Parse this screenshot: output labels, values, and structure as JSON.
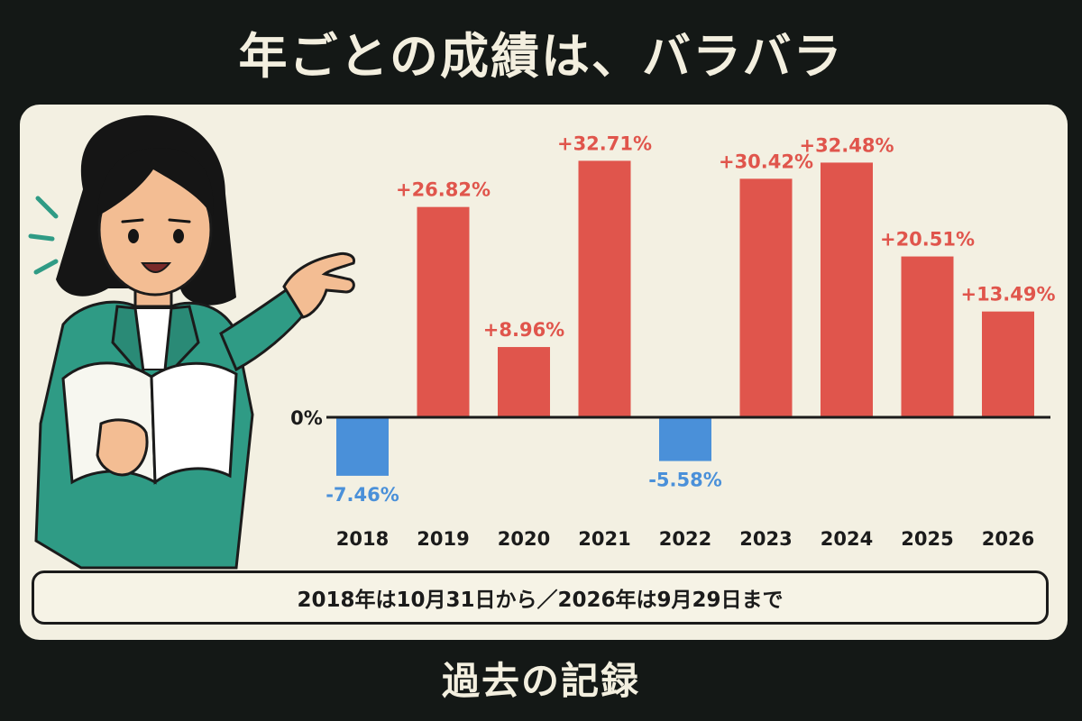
{
  "title": "年ごとの成績は、バラバラ",
  "footer_title": "過去の記録",
  "note": "2018年は10月31日から／2026年は9月29日まで",
  "colors": {
    "positive": "#e0554c",
    "negative": "#4a90d9",
    "background": "#141816",
    "panel": "#f3f0e2",
    "jacket": "#2f9b85"
  },
  "chart_data": {
    "type": "bar",
    "categories": [
      "2018",
      "2019",
      "2020",
      "2021",
      "2022",
      "2023",
      "2024",
      "2025",
      "2026"
    ],
    "values": [
      -7.46,
      26.82,
      8.96,
      32.71,
      -5.58,
      30.42,
      32.48,
      20.51,
      13.49
    ],
    "data_labels": [
      "-7.46%",
      "+26.82%",
      "+8.96%",
      "+32.71%",
      "-5.58%",
      "+30.42%",
      "+32.48%",
      "+20.51%",
      "+13.49%"
    ],
    "zero_label": "0%",
    "grid": false,
    "legend": "none"
  }
}
